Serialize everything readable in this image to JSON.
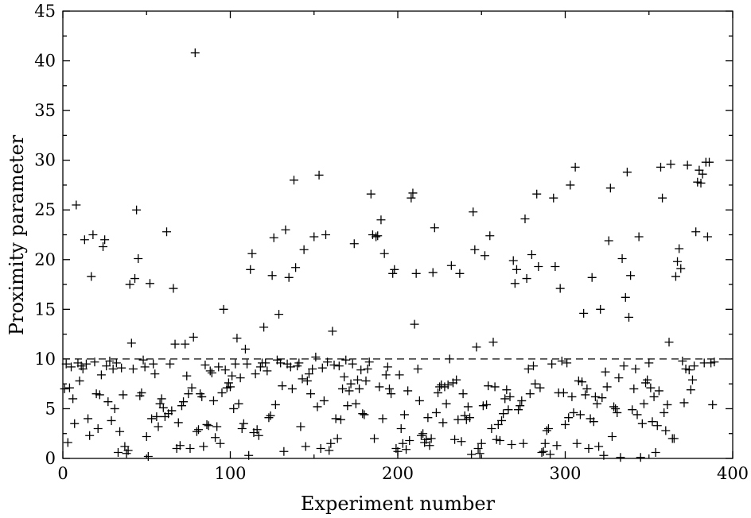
{
  "chart_data": {
    "type": "scatter",
    "title": "",
    "xlabel": "Experiment number",
    "ylabel": "Proximity parameter",
    "xlim": [
      0,
      400
    ],
    "ylim": [
      0,
      45
    ],
    "xticks": [
      0,
      100,
      200,
      300,
      400
    ],
    "yticks": [
      0,
      5,
      10,
      15,
      20,
      25,
      30,
      35,
      40,
      45
    ],
    "grid": false,
    "legend": "none",
    "marker": "plus",
    "threshold": 10,
    "points": [
      [
        1,
        7.0
      ],
      [
        2,
        9.5
      ],
      [
        3,
        1.6
      ],
      [
        4,
        7.1
      ],
      [
        5,
        9.2
      ],
      [
        6,
        6.0
      ],
      [
        7,
        3.5
      ],
      [
        8,
        25.5
      ],
      [
        9,
        9.6
      ],
      [
        10,
        7.8
      ],
      [
        11,
        9.3
      ],
      [
        12,
        9.0
      ],
      [
        13,
        22.0
      ],
      [
        14,
        9.5
      ],
      [
        15,
        4.0
      ],
      [
        16,
        2.3
      ],
      [
        17,
        18.3
      ],
      [
        18,
        22.5
      ],
      [
        19,
        9.7
      ],
      [
        20,
        6.5
      ],
      [
        21,
        3.0
      ],
      [
        22,
        6.4
      ],
      [
        23,
        8.4
      ],
      [
        24,
        21.3
      ],
      [
        25,
        22.0
      ],
      [
        26,
        9.3
      ],
      [
        27,
        5.7
      ],
      [
        28,
        9.8
      ],
      [
        29,
        3.8
      ],
      [
        30,
        9.0
      ],
      [
        31,
        5.0
      ],
      [
        32,
        9.6
      ],
      [
        33,
        0.6
      ],
      [
        34,
        2.7
      ],
      [
        35,
        9.1
      ],
      [
        36,
        6.4
      ],
      [
        37,
        1.2
      ],
      [
        38,
        0.5
      ],
      [
        39,
        0.8
      ],
      [
        40,
        17.5
      ],
      [
        41,
        11.6
      ],
      [
        42,
        9.0
      ],
      [
        43,
        18.1
      ],
      [
        44,
        25.0
      ],
      [
        45,
        20.1
      ],
      [
        46,
        6.3
      ],
      [
        47,
        6.6
      ],
      [
        48,
        9.9
      ],
      [
        49,
        9.2
      ],
      [
        50,
        2.2
      ],
      [
        51,
        0.2
      ],
      [
        52,
        17.6
      ],
      [
        53,
        4.0
      ],
      [
        54,
        9.5
      ],
      [
        55,
        8.5
      ],
      [
        56,
        4.2
      ],
      [
        57,
        3.2
      ],
      [
        58,
        5.5
      ],
      [
        59,
        6.0
      ],
      [
        60,
        5.1
      ],
      [
        61,
        4.2
      ],
      [
        62,
        22.8
      ],
      [
        63,
        4.5
      ],
      [
        64,
        9.5
      ],
      [
        65,
        4.8
      ],
      [
        66,
        17.1
      ],
      [
        67,
        11.5
      ],
      [
        68,
        1.0
      ],
      [
        69,
        3.6
      ],
      [
        70,
        1.3
      ],
      [
        71,
        5.3
      ],
      [
        72,
        5.7
      ],
      [
        73,
        11.5
      ],
      [
        74,
        8.3
      ],
      [
        75,
        6.5
      ],
      [
        76,
        1.0
      ],
      [
        77,
        7.1
      ],
      [
        78,
        12.2
      ],
      [
        79,
        40.8
      ],
      [
        80,
        2.7
      ],
      [
        81,
        2.9
      ],
      [
        82,
        6.5
      ],
      [
        83,
        6.2
      ],
      [
        84,
        1.2
      ],
      [
        85,
        9.4
      ],
      [
        86,
        3.4
      ],
      [
        87,
        3.3
      ],
      [
        88,
        8.8
      ],
      [
        89,
        8.6
      ],
      [
        90,
        5.8
      ],
      [
        91,
        2.1
      ],
      [
        92,
        3.2
      ],
      [
        93,
        9.2
      ],
      [
        94,
        1.5
      ],
      [
        95,
        6.6
      ],
      [
        96,
        15.0
      ],
      [
        97,
        8.9
      ],
      [
        98,
        7.1
      ],
      [
        99,
        7.6
      ],
      [
        100,
        7.2
      ],
      [
        101,
        8.3
      ],
      [
        102,
        5.0
      ],
      [
        103,
        9.5
      ],
      [
        104,
        12.1
      ],
      [
        105,
        5.5
      ],
      [
        106,
        8.1
      ],
      [
        107,
        3.0
      ],
      [
        108,
        3.5
      ],
      [
        109,
        11.0
      ],
      [
        110,
        9.5
      ],
      [
        111,
        0.3
      ],
      [
        112,
        19.0
      ],
      [
        113,
        20.6
      ],
      [
        114,
        2.6
      ],
      [
        115,
        8.5
      ],
      [
        116,
        2.9
      ],
      [
        117,
        2.3
      ],
      [
        118,
        9.2
      ],
      [
        119,
        9.6
      ],
      [
        120,
        13.2
      ],
      [
        121,
        9.6
      ],
      [
        122,
        8.8
      ],
      [
        123,
        4.1
      ],
      [
        124,
        4.3
      ],
      [
        125,
        18.4
      ],
      [
        126,
        22.2
      ],
      [
        127,
        5.4
      ],
      [
        128,
        9.9
      ],
      [
        129,
        14.5
      ],
      [
        130,
        9.6
      ],
      [
        131,
        7.3
      ],
      [
        132,
        0.7
      ],
      [
        133,
        23.0
      ],
      [
        134,
        9.5
      ],
      [
        135,
        18.2
      ],
      [
        136,
        9.2
      ],
      [
        137,
        7.0
      ],
      [
        138,
        28.0
      ],
      [
        139,
        19.2
      ],
      [
        140,
        9.3
      ],
      [
        141,
        9.6
      ],
      [
        142,
        3.2
      ],
      [
        143,
        8.0
      ],
      [
        144,
        21.0
      ],
      [
        145,
        1.2
      ],
      [
        146,
        7.8
      ],
      [
        147,
        8.5
      ],
      [
        148,
        6.5
      ],
      [
        149,
        9.0
      ],
      [
        150,
        22.3
      ],
      [
        151,
        10.2
      ],
      [
        152,
        5.2
      ],
      [
        153,
        28.5
      ],
      [
        154,
        1.0
      ],
      [
        155,
        9.1
      ],
      [
        156,
        5.8
      ],
      [
        157,
        22.5
      ],
      [
        158,
        9.7
      ],
      [
        159,
        0.8
      ],
      [
        160,
        1.5
      ],
      [
        161,
        12.8
      ],
      [
        162,
        9.4
      ],
      [
        163,
        4.0
      ],
      [
        164,
        2.0
      ],
      [
        165,
        9.3
      ],
      [
        166,
        3.9
      ],
      [
        167,
        7.0
      ],
      [
        168,
        8.2
      ],
      [
        169,
        9.9
      ],
      [
        170,
        5.3
      ],
      [
        171,
        6.8
      ],
      [
        172,
        7.5
      ],
      [
        173,
        9.5
      ],
      [
        174,
        21.6
      ],
      [
        175,
        5.5
      ],
      [
        176,
        7.9
      ],
      [
        177,
        7.0
      ],
      [
        178,
        8.9
      ],
      [
        179,
        4.5
      ],
      [
        180,
        4.4
      ],
      [
        181,
        7.8
      ],
      [
        182,
        9.0
      ],
      [
        183,
        9.7
      ],
      [
        184,
        26.6
      ],
      [
        185,
        22.5
      ],
      [
        186,
        2.0
      ],
      [
        187,
        22.3
      ],
      [
        188,
        22.4
      ],
      [
        189,
        7.2
      ],
      [
        190,
        24.0
      ],
      [
        191,
        4.0
      ],
      [
        192,
        20.6
      ],
      [
        193,
        8.4
      ],
      [
        194,
        9.2
      ],
      [
        195,
        7.0
      ],
      [
        196,
        6.5
      ],
      [
        197,
        18.6
      ],
      [
        198,
        19.0
      ],
      [
        199,
        1.0
      ],
      [
        200,
        0.7
      ],
      [
        201,
        8.4
      ],
      [
        202,
        3.0
      ],
      [
        203,
        1.5
      ],
      [
        204,
        4.4
      ],
      [
        205,
        0.9
      ],
      [
        206,
        6.8
      ],
      [
        207,
        1.8
      ],
      [
        208,
        26.2
      ],
      [
        209,
        26.7
      ],
      [
        210,
        13.5
      ],
      [
        211,
        18.6
      ],
      [
        212,
        9.0
      ],
      [
        213,
        5.8
      ],
      [
        214,
        2.3
      ],
      [
        215,
        2.5
      ],
      [
        216,
        1.6
      ],
      [
        217,
        1.9
      ],
      [
        218,
        4.1
      ],
      [
        219,
        1.3
      ],
      [
        220,
        2.0
      ],
      [
        221,
        18.7
      ],
      [
        222,
        23.2
      ],
      [
        223,
        4.6
      ],
      [
        224,
        6.6
      ],
      [
        225,
        7.2
      ],
      [
        226,
        7.4
      ],
      [
        227,
        3.6
      ],
      [
        228,
        7.2
      ],
      [
        229,
        5.5
      ],
      [
        230,
        7.4
      ],
      [
        231,
        10.0
      ],
      [
        232,
        19.4
      ],
      [
        233,
        7.6
      ],
      [
        234,
        1.9
      ],
      [
        235,
        7.9
      ],
      [
        236,
        3.9
      ],
      [
        237,
        18.6
      ],
      [
        238,
        1.7
      ],
      [
        239,
        6.5
      ],
      [
        240,
        4.3
      ],
      [
        241,
        3.9
      ],
      [
        242,
        5.2
      ],
      [
        243,
        4.1
      ],
      [
        244,
        0.4
      ],
      [
        245,
        24.8
      ],
      [
        246,
        21.0
      ],
      [
        247,
        11.2
      ],
      [
        248,
        1.0
      ],
      [
        249,
        0.5
      ],
      [
        250,
        1.5
      ],
      [
        251,
        5.3
      ],
      [
        252,
        20.4
      ],
      [
        253,
        5.4
      ],
      [
        254,
        7.3
      ],
      [
        255,
        22.4
      ],
      [
        256,
        3.0
      ],
      [
        257,
        11.7
      ],
      [
        258,
        7.2
      ],
      [
        259,
        1.9
      ],
      [
        260,
        3.4
      ],
      [
        261,
        1.8
      ],
      [
        262,
        3.8
      ],
      [
        263,
        4.5
      ],
      [
        264,
        6.0
      ],
      [
        265,
        6.9
      ],
      [
        266,
        4.9
      ],
      [
        267,
        6.2
      ],
      [
        268,
        1.4
      ],
      [
        269,
        19.9
      ],
      [
        270,
        17.6
      ],
      [
        271,
        19.0
      ],
      [
        272,
        4.9
      ],
      [
        273,
        5.3
      ],
      [
        274,
        5.8
      ],
      [
        275,
        1.5
      ],
      [
        276,
        24.1
      ],
      [
        277,
        18.1
      ],
      [
        278,
        9.0
      ],
      [
        279,
        6.5
      ],
      [
        280,
        20.5
      ],
      [
        281,
        9.3
      ],
      [
        282,
        7.5
      ],
      [
        283,
        26.6
      ],
      [
        284,
        19.3
      ],
      [
        285,
        7.1
      ],
      [
        286,
        0.6
      ],
      [
        287,
        0.7
      ],
      [
        288,
        1.5
      ],
      [
        289,
        2.8
      ],
      [
        290,
        3.0
      ],
      [
        291,
        0.4
      ],
      [
        292,
        9.5
      ],
      [
        293,
        26.2
      ],
      [
        294,
        19.3
      ],
      [
        295,
        1.3
      ],
      [
        296,
        6.6
      ],
      [
        297,
        17.1
      ],
      [
        298,
        9.8
      ],
      [
        299,
        6.6
      ],
      [
        300,
        3.4
      ],
      [
        301,
        9.6
      ],
      [
        302,
        4.1
      ],
      [
        303,
        27.5
      ],
      [
        304,
        6.2
      ],
      [
        305,
        4.6
      ],
      [
        306,
        29.3
      ],
      [
        307,
        1.5
      ],
      [
        308,
        7.8
      ],
      [
        309,
        4.4
      ],
      [
        310,
        7.7
      ],
      [
        311,
        14.6
      ],
      [
        312,
        6.4
      ],
      [
        313,
        7.0
      ],
      [
        314,
        1.0
      ],
      [
        315,
        4.0
      ],
      [
        316,
        18.2
      ],
      [
        317,
        3.7
      ],
      [
        318,
        6.2
      ],
      [
        319,
        5.5
      ],
      [
        320,
        1.2
      ],
      [
        321,
        15.0
      ],
      [
        322,
        6.1
      ],
      [
        323,
        0.3
      ],
      [
        324,
        8.7
      ],
      [
        325,
        7.2
      ],
      [
        326,
        21.9
      ],
      [
        327,
        27.2
      ],
      [
        328,
        2.2
      ],
      [
        329,
        5.2
      ],
      [
        330,
        5.0
      ],
      [
        331,
        4.6
      ],
      [
        332,
        8.1
      ],
      [
        333,
        0.1
      ],
      [
        334,
        20.1
      ],
      [
        335,
        9.3
      ],
      [
        336,
        16.2
      ],
      [
        337,
        28.8
      ],
      [
        338,
        14.2
      ],
      [
        339,
        18.4
      ],
      [
        340,
        4.9
      ],
      [
        341,
        7.0
      ],
      [
        342,
        9.0
      ],
      [
        343,
        4.4
      ],
      [
        344,
        22.3
      ],
      [
        345,
        0.1
      ],
      [
        346,
        3.5
      ],
      [
        347,
        5.5
      ],
      [
        348,
        7.6
      ],
      [
        349,
        7.9
      ],
      [
        350,
        9.6
      ],
      [
        351,
        7.1
      ],
      [
        352,
        3.7
      ],
      [
        353,
        6.2
      ],
      [
        354,
        0.6
      ],
      [
        355,
        3.3
      ],
      [
        356,
        6.8
      ],
      [
        357,
        29.3
      ],
      [
        358,
        26.2
      ],
      [
        359,
        4.6
      ],
      [
        360,
        2.8
      ],
      [
        361,
        5.4
      ],
      [
        362,
        11.7
      ],
      [
        363,
        29.6
      ],
      [
        364,
        2.0
      ],
      [
        365,
        2.0
      ],
      [
        366,
        18.3
      ],
      [
        367,
        19.8
      ],
      [
        368,
        21.1
      ],
      [
        369,
        19.1
      ],
      [
        370,
        9.8
      ],
      [
        371,
        5.6
      ],
      [
        372,
        9.0
      ],
      [
        373,
        29.5
      ],
      [
        374,
        8.9
      ],
      [
        375,
        6.9
      ],
      [
        376,
        7.9
      ],
      [
        377,
        9.3
      ],
      [
        378,
        22.8
      ],
      [
        379,
        27.8
      ],
      [
        380,
        29.0
      ],
      [
        381,
        27.7
      ],
      [
        382,
        28.6
      ],
      [
        383,
        9.6
      ],
      [
        384,
        29.8
      ],
      [
        385,
        22.3
      ],
      [
        386,
        29.8
      ],
      [
        387,
        9.6
      ],
      [
        388,
        5.4
      ],
      [
        389,
        9.7
      ]
    ]
  }
}
